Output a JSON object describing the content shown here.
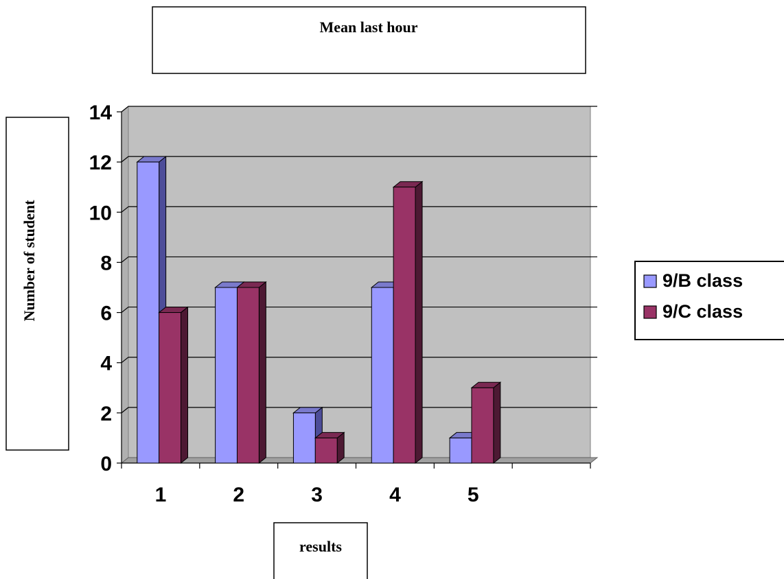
{
  "colors": {
    "background": "#ffffff",
    "plot_wall": "#c0c0c0",
    "floor": "#a0a0a0",
    "gridline": "#000000",
    "series_b_front": "#9999ff",
    "series_b_side": "#4d4d99",
    "series_b_top": "#7a7acc",
    "series_c_front": "#993366",
    "series_c_side": "#4d1933",
    "series_c_top": "#7a2952"
  },
  "chart_data": {
    "type": "bar",
    "style": "3d-clustered-column",
    "title": "Mean last hour",
    "xlabel": "results",
    "ylabel": "Number of student",
    "categories": [
      "1",
      "2",
      "3",
      "4",
      "5"
    ],
    "extra_empty_category_slots": 1,
    "series": [
      {
        "name": "9/B class",
        "values": [
          12,
          7,
          2,
          7,
          1
        ]
      },
      {
        "name": "9/C class",
        "values": [
          6,
          7,
          1,
          11,
          3
        ]
      }
    ],
    "ylim": [
      0,
      14
    ],
    "yticks": [
      "0",
      "2",
      "4",
      "6",
      "8",
      "10",
      "12",
      "14"
    ],
    "grid": true,
    "legend": "right"
  }
}
